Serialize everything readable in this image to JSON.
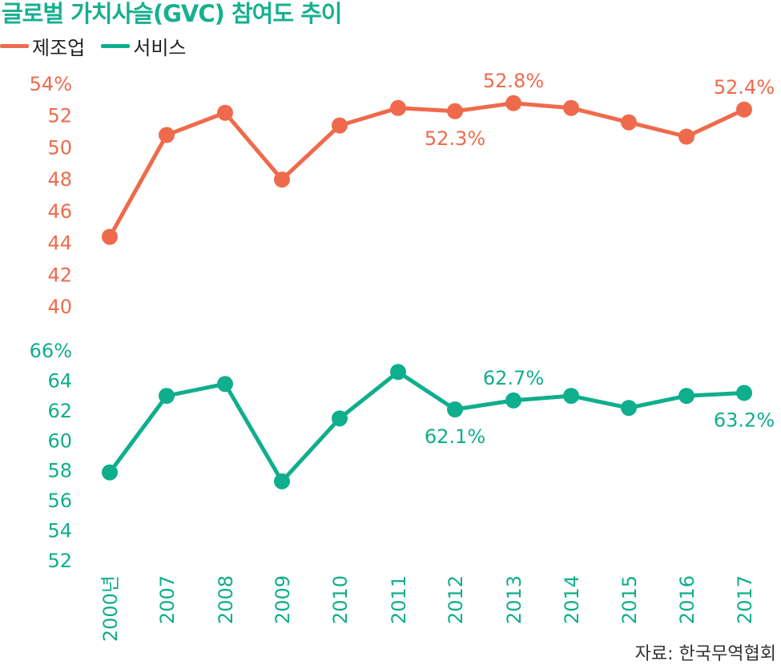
{
  "title": "글로벌 가치사슬(GVC) 참여도 추이",
  "source": "자료: 한국무역협회",
  "colors": {
    "manufacturing": "#ef6a4c",
    "services": "#0fae8c"
  },
  "chart_data": [
    {
      "type": "line",
      "title": "글로벌 가치사슬(GVC) 참여도 추이",
      "x": [
        "2000년",
        "2007",
        "2008",
        "2009",
        "2010",
        "2011",
        "2012",
        "2013",
        "2014",
        "2015",
        "2016",
        "2017"
      ],
      "series": [
        {
          "name": "제조업",
          "values": [
            44.4,
            50.8,
            52.2,
            48.0,
            51.4,
            52.5,
            52.3,
            52.8,
            52.5,
            51.6,
            50.7,
            52.4
          ]
        }
      ],
      "ylim": [
        40,
        54
      ],
      "yticks": [
        "54%",
        "52",
        "50",
        "48",
        "46",
        "44",
        "42",
        "40"
      ],
      "annotations": [
        {
          "index": 6,
          "text": "52.3%",
          "position": "below"
        },
        {
          "index": 7,
          "text": "52.8%",
          "position": "above"
        },
        {
          "index": 11,
          "text": "52.4%",
          "position": "above"
        }
      ],
      "legend": "top-left"
    },
    {
      "type": "line",
      "x": [
        "2000년",
        "2007",
        "2008",
        "2009",
        "2010",
        "2011",
        "2012",
        "2013",
        "2014",
        "2015",
        "2016",
        "2017"
      ],
      "series": [
        {
          "name": "서비스",
          "values": [
            57.9,
            63.0,
            63.8,
            57.3,
            61.5,
            64.6,
            62.1,
            62.7,
            63.0,
            62.2,
            63.0,
            63.2
          ]
        }
      ],
      "ylim": [
        52,
        66
      ],
      "yticks": [
        "66%",
        "64",
        "62",
        "60",
        "58",
        "56",
        "54",
        "52"
      ],
      "annotations": [
        {
          "index": 6,
          "text": "62.1%",
          "position": "below"
        },
        {
          "index": 7,
          "text": "62.7%",
          "position": "above"
        },
        {
          "index": 11,
          "text": "63.2%",
          "position": "below"
        }
      ]
    }
  ]
}
